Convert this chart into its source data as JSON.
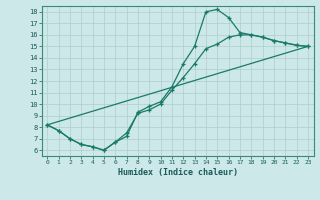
{
  "xlabel": "Humidex (Indice chaleur)",
  "background_color": "#cce8e8",
  "grid_color": "#b0cccc",
  "line_color": "#1a7a6a",
  "xlim": [
    -0.5,
    23.5
  ],
  "ylim": [
    5.5,
    18.5
  ],
  "xticks": [
    0,
    1,
    2,
    3,
    4,
    5,
    6,
    7,
    8,
    9,
    10,
    11,
    12,
    13,
    14,
    15,
    16,
    17,
    18,
    19,
    20,
    21,
    22,
    23
  ],
  "yticks": [
    6,
    7,
    8,
    9,
    10,
    11,
    12,
    13,
    14,
    15,
    16,
    17,
    18
  ],
  "line1_x": [
    0,
    1,
    2,
    3,
    4,
    5,
    6,
    7,
    8,
    9,
    10,
    11,
    12,
    13,
    14,
    15,
    16,
    17,
    18,
    19,
    20,
    21,
    22,
    23
  ],
  "line1_y": [
    8.2,
    7.7,
    7.0,
    6.5,
    6.3,
    6.0,
    6.7,
    7.2,
    9.3,
    9.8,
    10.2,
    11.5,
    13.5,
    15.0,
    18.0,
    18.2,
    17.5,
    16.2,
    16.0,
    15.8,
    15.5,
    15.3,
    15.1,
    15.0
  ],
  "line2_x": [
    0,
    1,
    2,
    3,
    4,
    5,
    6,
    7,
    8,
    9,
    10,
    11,
    12,
    13,
    14,
    15,
    16,
    17,
    18,
    19,
    20,
    21,
    22,
    23
  ],
  "line2_y": [
    8.2,
    7.7,
    7.0,
    6.5,
    6.3,
    6.0,
    6.7,
    7.5,
    9.2,
    9.5,
    10.0,
    11.2,
    12.3,
    13.5,
    14.8,
    15.2,
    15.8,
    16.0,
    16.0,
    15.8,
    15.5,
    15.3,
    15.1,
    15.0
  ],
  "line3_x": [
    0,
    23
  ],
  "line3_y": [
    8.2,
    15.0
  ]
}
